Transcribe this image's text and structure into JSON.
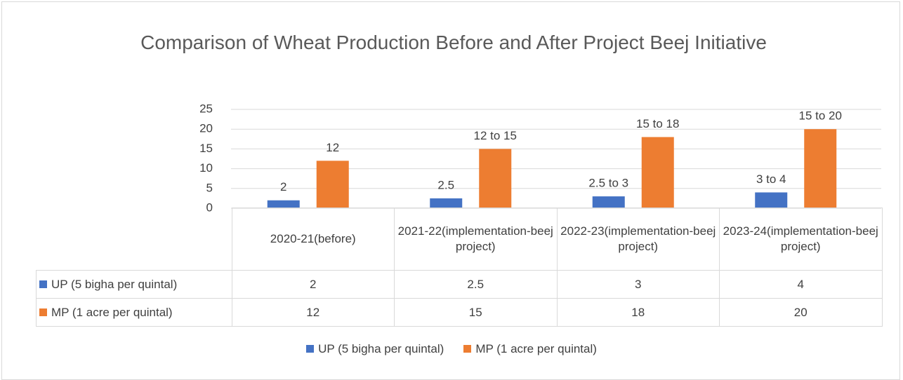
{
  "chart_data": {
    "type": "bar",
    "title": "Comparison of Wheat Production Before and After Project Beej Initiative",
    "categories": [
      "2020-21(before)",
      "2021-22(implementation-beej project)",
      "2022-23(implementation-beej project)",
      "2023-24(implementation-beej project)"
    ],
    "series": [
      {
        "name": "UP (5 bigha per quintal)",
        "color": "#4472c4",
        "values": [
          2,
          2.5,
          3,
          4
        ],
        "value_labels": [
          "2",
          "2.5",
          "2.5 to 3",
          "3 to 4"
        ]
      },
      {
        "name": "MP (1 acre per quintal)",
        "color": "#ed7d31",
        "values": [
          12,
          15,
          18,
          20
        ],
        "value_labels": [
          "12",
          "12 to 15",
          "15 to 18",
          "15 to 20"
        ]
      }
    ],
    "ylim": [
      0,
      25
    ],
    "yticks": [
      0,
      5,
      10,
      15,
      20,
      25
    ],
    "grid": true,
    "legend": "bottom"
  }
}
